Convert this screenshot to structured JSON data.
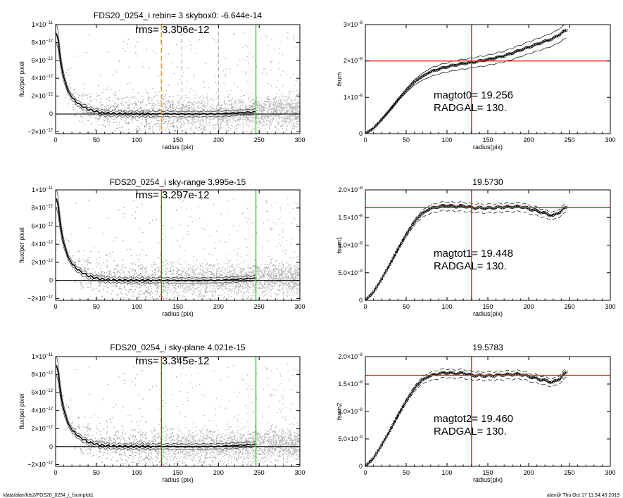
{
  "footer": {
    "path": "/data/alan/fds2/FDS20_0254_i_fsumplot1",
    "stamp": "alan@  Thu Oct 17 11:54:43 2019"
  },
  "colors": {
    "red": "#e8201e",
    "green": "#2bd12b",
    "orange": "#f0922a",
    "scatter": "#9a9a9a",
    "profile": "#000000"
  },
  "chart_data": [
    {
      "id": "profile0",
      "type": "scatter",
      "title": "FDS20_0254_i rebin= 3    skybox0: -6.644e-14",
      "annotation": "rms= 3.306e-12",
      "xlabel": "radius (pix)",
      "ylabel": "flux/per pixel",
      "xlim": [
        0,
        300
      ],
      "ylim": [
        -2.2e-12,
        1e-11
      ],
      "xticks": [
        0,
        50,
        100,
        150,
        200,
        250,
        300
      ],
      "yticks": [
        {
          "v": -2e-12,
          "m": "−2×10",
          "e": "−12"
        },
        {
          "v": 0,
          "m": "0",
          "e": ""
        },
        {
          "v": 2e-12,
          "m": "2×10",
          "e": "−12"
        },
        {
          "v": 4e-12,
          "m": "4×10",
          "e": "−12"
        },
        {
          "v": 6e-12,
          "m": "6×10",
          "e": "−12"
        },
        {
          "v": 8e-12,
          "m": "8×10",
          "e": "−12"
        },
        {
          "v": 1e-11,
          "m": "1×10",
          "e": "−11"
        }
      ],
      "vlines": [
        {
          "x": 130,
          "color": "#f0922a",
          "dash": true
        },
        {
          "x": 246,
          "color": "#2bd12b",
          "dash": false
        }
      ],
      "faint_dashed_x": [
        155,
        200
      ],
      "hline_zero": true,
      "profile": {
        "x": [
          2,
          6,
          10,
          15,
          20,
          30,
          40,
          50,
          60,
          80,
          100,
          130,
          160,
          200,
          246
        ],
        "y": [
          9e-12,
          6e-12,
          4e-12,
          2.7e-12,
          1.8e-12,
          1e-12,
          5e-13,
          2.5e-13,
          1e-13,
          2e-14,
          0,
          2e-14,
          -2e-14,
          1e-14,
          2.5e-13
        ]
      }
    },
    {
      "id": "fsum0",
      "type": "line",
      "title": "",
      "annotation1": "magtot0=  19.256",
      "annotation2": "RADGAL=     130.",
      "xlabel": "radius(pix)",
      "ylabel": "fsum",
      "xlim": [
        0,
        300
      ],
      "ylim": [
        0,
        3e-08
      ],
      "xticks": [
        0,
        50,
        100,
        150,
        200,
        250,
        300
      ],
      "yticks": [
        {
          "v": 0,
          "m": "0",
          "e": ""
        },
        {
          "v": 1e-08,
          "m": "1×10",
          "e": "−8"
        },
        {
          "v": 2e-08,
          "m": "2×10",
          "e": "−8"
        },
        {
          "v": 3e-08,
          "m": "3×10",
          "e": "−8"
        }
      ],
      "vline_x": 130,
      "hline_y": 2e-08,
      "curve": {
        "x": [
          0,
          10,
          20,
          30,
          40,
          50,
          60,
          70,
          80,
          90,
          100,
          110,
          120,
          130,
          150,
          170,
          190,
          210,
          230,
          246
        ],
        "y": [
          0,
          1.5e-09,
          3.9e-09,
          6.5e-09,
          9.3e-09,
          1.19e-08,
          1.42e-08,
          1.58e-08,
          1.7e-08,
          1.78e-08,
          1.84e-08,
          1.89e-08,
          1.93e-08,
          1.96e-08,
          2.04e-08,
          2.14e-08,
          2.3e-08,
          2.46e-08,
          2.62e-08,
          2.85e-08
        ]
      },
      "band": 0.06
    },
    {
      "id": "profile1",
      "type": "scatter",
      "title": "FDS20_0254_i sky-range  3.995e-15",
      "annotation": "rms= 3.297e-12",
      "xlabel": "radius (pix)",
      "ylabel": "flux/per pixel",
      "xlim": [
        0,
        300
      ],
      "ylim": [
        -2.2e-12,
        1e-11
      ],
      "xticks": [
        0,
        50,
        100,
        150,
        200,
        250,
        300
      ],
      "yticks": [
        {
          "v": -2e-12,
          "m": "−2×10",
          "e": "−12"
        },
        {
          "v": 0,
          "m": "0",
          "e": ""
        },
        {
          "v": 2e-12,
          "m": "2×10",
          "e": "−12"
        },
        {
          "v": 4e-12,
          "m": "4×10",
          "e": "−12"
        },
        {
          "v": 6e-12,
          "m": "6×10",
          "e": "−12"
        },
        {
          "v": 8e-12,
          "m": "8×10",
          "e": "−12"
        },
        {
          "v": 1e-11,
          "m": "1×10",
          "e": "−11"
        }
      ],
      "vlines": [
        {
          "x": 130,
          "color": "#e8201e",
          "dash": false
        },
        {
          "x": 246,
          "color": "#2bd12b",
          "dash": false
        }
      ],
      "faint_dashed_x": [],
      "hline_zero": true,
      "profile": {
        "x": [
          2,
          6,
          10,
          15,
          20,
          30,
          40,
          50,
          60,
          80,
          100,
          130,
          160,
          200,
          246
        ],
        "y": [
          9e-12,
          6e-12,
          4e-12,
          2.7e-12,
          1.8e-12,
          1e-12,
          5e-13,
          2.5e-13,
          1e-13,
          2e-14,
          0,
          2e-14,
          -2e-14,
          1e-14,
          2.5e-13
        ]
      }
    },
    {
      "id": "fsum1",
      "type": "line",
      "title": "19.5730",
      "annotation1": "magtot1=  19.448",
      "annotation2": "RADGAL=     130.",
      "xlabel": "radius(pix)",
      "ylabel": "fsum1",
      "xlim": [
        0,
        300
      ],
      "ylim": [
        0,
        2e-08
      ],
      "xticks": [
        0,
        50,
        100,
        150,
        200,
        250,
        300
      ],
      "yticks": [
        {
          "v": 0,
          "m": "0",
          "e": ""
        },
        {
          "v": 5e-09,
          "m": "5.0×10",
          "e": "−9"
        },
        {
          "v": 1e-08,
          "m": "1.0×10",
          "e": "−8"
        },
        {
          "v": 1.5e-08,
          "m": "1.5×10",
          "e": "−8"
        },
        {
          "v": 2e-08,
          "m": "2.0×10",
          "e": "−8"
        }
      ],
      "vline_x": 130,
      "hline_y": 1.68e-08,
      "curve": {
        "x": [
          0,
          10,
          20,
          30,
          40,
          50,
          60,
          70,
          80,
          90,
          100,
          110,
          120,
          130,
          150,
          170,
          190,
          210,
          230,
          240,
          246
        ],
        "y": [
          0,
          1.5e-09,
          3.9e-09,
          6.5e-09,
          9.3e-09,
          1.19e-08,
          1.42e-08,
          1.58e-08,
          1.66e-08,
          1.7e-08,
          1.72e-08,
          1.7e-08,
          1.71e-08,
          1.68e-08,
          1.67e-08,
          1.69e-08,
          1.7e-08,
          1.62e-08,
          1.53e-08,
          1.62e-08,
          1.69e-08
        ]
      },
      "band": 0.04
    },
    {
      "id": "profile2",
      "type": "scatter",
      "title": "FDS20_0254_i sky-plane  4.021e-15",
      "annotation": "rms= 3.345e-12",
      "xlabel": "radius (pix)",
      "ylabel": "flux/per pixel",
      "xlim": [
        0,
        300
      ],
      "ylim": [
        -2.2e-12,
        1e-11
      ],
      "xticks": [
        0,
        50,
        100,
        150,
        200,
        250,
        300
      ],
      "yticks": [
        {
          "v": -2e-12,
          "m": "−2×10",
          "e": "−12"
        },
        {
          "v": 0,
          "m": "0",
          "e": ""
        },
        {
          "v": 2e-12,
          "m": "2×10",
          "e": "−12"
        },
        {
          "v": 4e-12,
          "m": "4×10",
          "e": "−12"
        },
        {
          "v": 6e-12,
          "m": "6×10",
          "e": "−12"
        },
        {
          "v": 8e-12,
          "m": "8×10",
          "e": "−12"
        },
        {
          "v": 1e-11,
          "m": "1×10",
          "e": "−11"
        }
      ],
      "vlines": [
        {
          "x": 130,
          "color": "#e8201e",
          "dash": false
        },
        {
          "x": 246,
          "color": "#2bd12b",
          "dash": false
        }
      ],
      "faint_dashed_x": [],
      "hline_zero": true,
      "profile": {
        "x": [
          2,
          6,
          10,
          15,
          20,
          30,
          40,
          50,
          60,
          80,
          100,
          130,
          160,
          200,
          246
        ],
        "y": [
          9e-12,
          6e-12,
          4e-12,
          2.7e-12,
          1.8e-12,
          1e-12,
          5e-13,
          2.5e-13,
          1e-13,
          2e-14,
          0,
          2e-14,
          -2e-14,
          1e-14,
          2.5e-13
        ]
      }
    },
    {
      "id": "fsum2",
      "type": "line",
      "title": "19.5783",
      "annotation1": "magtot2=  19.460",
      "annotation2": "RADGAL=     130.",
      "xlabel": "radius(pix)",
      "ylabel": "fsum2",
      "xlim": [
        0,
        300
      ],
      "ylim": [
        0,
        2e-08
      ],
      "xticks": [
        0,
        50,
        100,
        150,
        200,
        250,
        300
      ],
      "yticks": [
        {
          "v": 0,
          "m": "0",
          "e": ""
        },
        {
          "v": 5e-09,
          "m": "5.0×10",
          "e": "−9"
        },
        {
          "v": 1e-08,
          "m": "1.0×10",
          "e": "−8"
        },
        {
          "v": 1.5e-08,
          "m": "1.5×10",
          "e": "−8"
        },
        {
          "v": 2e-08,
          "m": "2.0×10",
          "e": "−8"
        }
      ],
      "vline_x": 130,
      "hline_y": 1.66e-08,
      "curve": {
        "x": [
          0,
          10,
          20,
          30,
          40,
          50,
          60,
          70,
          80,
          90,
          100,
          110,
          120,
          130,
          150,
          170,
          190,
          210,
          230,
          240,
          246
        ],
        "y": [
          0,
          1.5e-09,
          3.9e-09,
          6.5e-09,
          9.3e-09,
          1.19e-08,
          1.42e-08,
          1.58e-08,
          1.65e-08,
          1.69e-08,
          1.71e-08,
          1.69e-08,
          1.7e-08,
          1.66e-08,
          1.65e-08,
          1.67e-08,
          1.68e-08,
          1.6e-08,
          1.53e-08,
          1.62e-08,
          1.72e-08
        ]
      },
      "band": 0.04
    }
  ]
}
